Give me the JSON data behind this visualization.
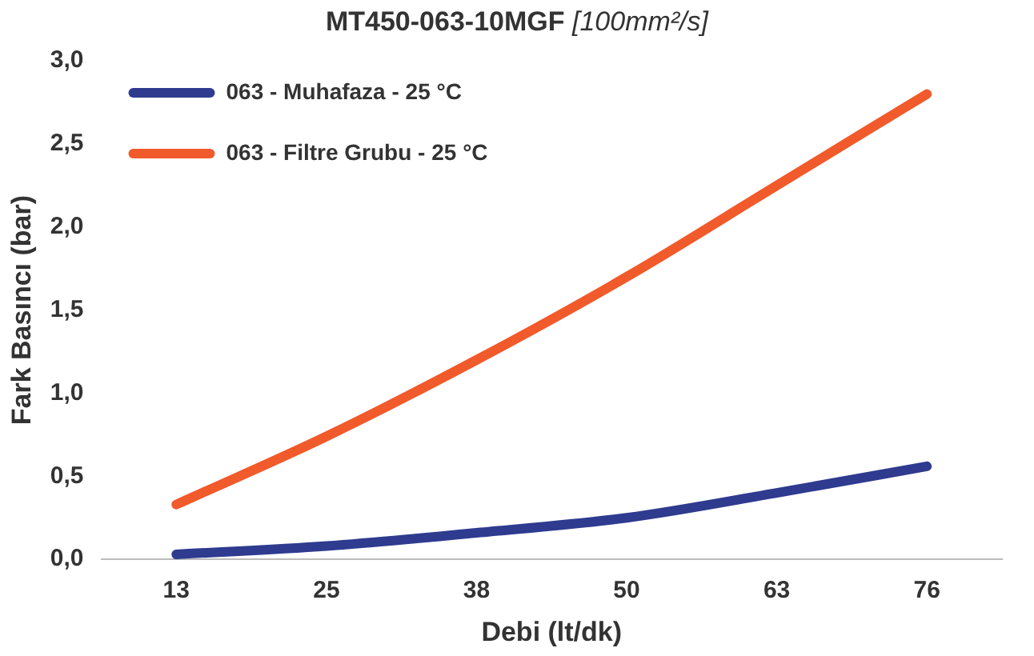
{
  "chart_data": {
    "type": "line",
    "title": "MT450-063-10MGF",
    "subtitle": "[100mm²/s]",
    "xlabel": "Debi (lt/dk)",
    "ylabel": "Fark Basıncı (bar)",
    "categories": [
      "13",
      "25",
      "38",
      "50",
      "63",
      "76"
    ],
    "series": [
      {
        "name": "063 - Muhafaza - 25 °C",
        "color": "#2e3b8f",
        "values": [
          0.03,
          0.08,
          0.16,
          0.25,
          0.4,
          0.56
        ]
      },
      {
        "name": "063 - Filtre Grubu - 25 °C",
        "color": "#f15a2b",
        "values": [
          0.33,
          0.74,
          1.2,
          1.7,
          2.25,
          2.8
        ]
      }
    ],
    "ylim": [
      0,
      3
    ],
    "yticks": [
      {
        "value": 0,
        "label": "0,0"
      },
      {
        "value": 0.5,
        "label": "0,5"
      },
      {
        "value": 1,
        "label": "1,0"
      },
      {
        "value": 1.5,
        "label": "1,5"
      },
      {
        "value": 2,
        "label": "2,0"
      },
      {
        "value": 2.5,
        "label": "2,5"
      },
      {
        "value": 3,
        "label": "3,0"
      }
    ],
    "grid": false,
    "legend": "top left",
    "marker": "none",
    "line_style": "solid"
  }
}
